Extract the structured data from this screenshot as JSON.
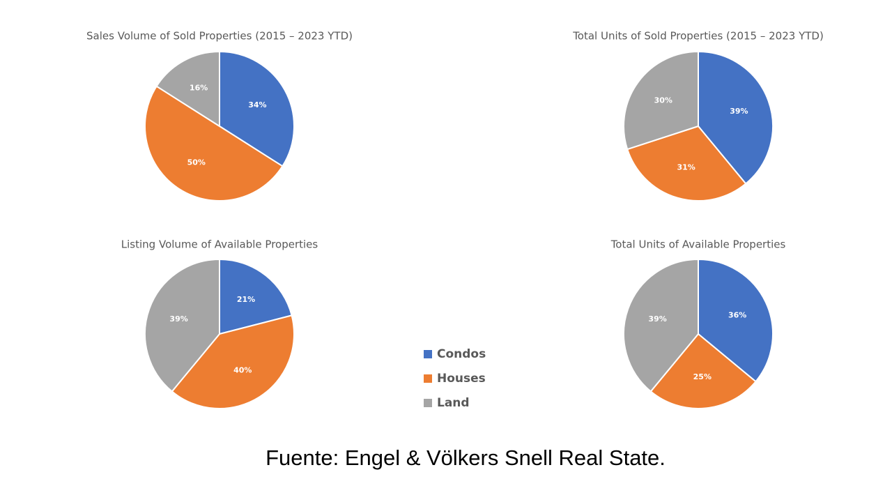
{
  "chart_data": [
    {
      "type": "pie",
      "title": "Sales Volume of Sold Properties (2015 – 2023 YTD)",
      "categories": [
        "Condos",
        "Houses",
        "Land"
      ],
      "values": [
        34,
        50,
        16
      ],
      "value_labels": [
        "34%",
        "50%",
        "16%"
      ],
      "colors": [
        "#4472c4",
        "#ed7d31",
        "#a5a5a5"
      ]
    },
    {
      "type": "pie",
      "title": "Total Units of Sold Properties (2015 – 2023 YTD)",
      "categories": [
        "Condos",
        "Houses",
        "Land"
      ],
      "values": [
        39,
        31,
        30
      ],
      "value_labels": [
        "39%",
        "31%",
        "30%"
      ],
      "colors": [
        "#4472c4",
        "#ed7d31",
        "#a5a5a5"
      ]
    },
    {
      "type": "pie",
      "title": "Listing Volume of Available Properties",
      "categories": [
        "Condos",
        "Houses",
        "Land"
      ],
      "values": [
        21,
        40,
        39
      ],
      "value_labels": [
        "21%",
        "40%",
        "39%"
      ],
      "colors": [
        "#4472c4",
        "#ed7d31",
        "#a5a5a5"
      ]
    },
    {
      "type": "pie",
      "title": "Total Units of Available Properties",
      "categories": [
        "Condos",
        "Houses",
        "Land"
      ],
      "values": [
        36,
        25,
        39
      ],
      "value_labels": [
        "36%",
        "25%",
        "39%"
      ],
      "colors": [
        "#4472c4",
        "#ed7d31",
        "#a5a5a5"
      ]
    }
  ],
  "source": "Fuente: Engel & Völkers Snell Real State."
}
